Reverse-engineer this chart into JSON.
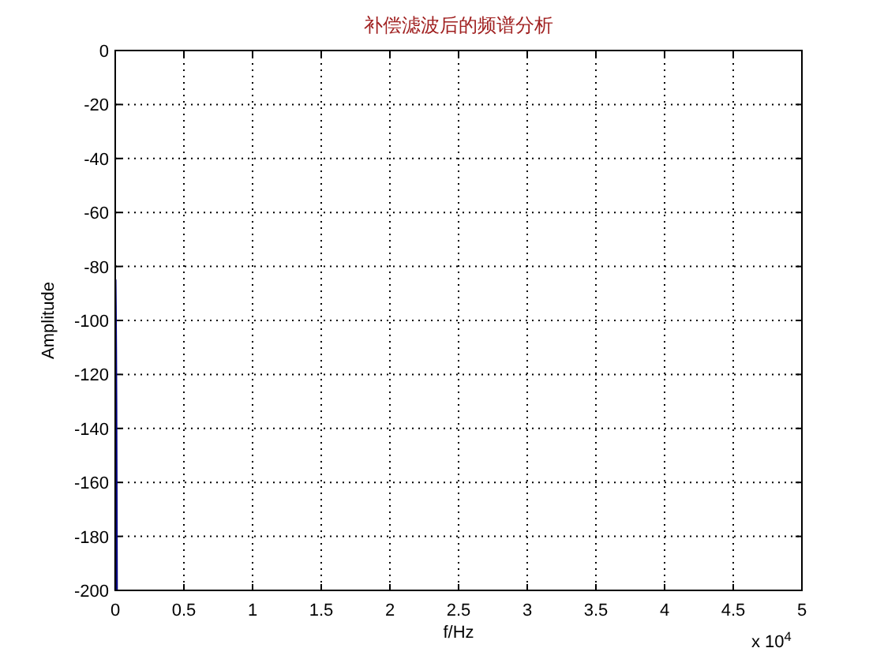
{
  "chart_data": {
    "type": "line",
    "title": "补偿滤波后的频谱分析",
    "xlabel": "f/Hz",
    "ylabel": "Amplitude",
    "annotations": [
      "x 10$^{4}$"
    ],
    "x": [
      0,
      0.002,
      0.004,
      0.006,
      0.008,
      0.01,
      0.012
    ],
    "series": [
      {
        "color": "#000080",
        "values": [
          -200,
          -85,
          -95,
          -110,
          -130,
          -162,
          -200
        ]
      }
    ],
    "xlim": [
      0,
      5
    ],
    "xticks": [
      0,
      0.5,
      1,
      1.5,
      2,
      2.5,
      3,
      3.5,
      4,
      4.5,
      5
    ],
    "ylim": [
      -200,
      0
    ],
    "yticks": [
      -200,
      -180,
      -160,
      -140,
      -120,
      -100,
      -80,
      -60,
      -40,
      -20,
      0
    ],
    "grid": true,
    "line_style": "solid",
    "marker": "none"
  }
}
